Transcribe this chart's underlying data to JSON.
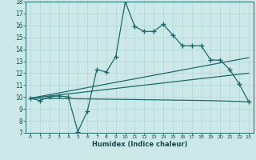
{
  "xlabel": "Humidex (Indice chaleur)",
  "bg_color": "#cde8e8",
  "line_color": "#1a6b6b",
  "grid_color": "#b0d8d8",
  "x_min": 0,
  "x_max": 23,
  "y_min": 7,
  "y_max": 18,
  "main_x": [
    0,
    1,
    2,
    3,
    4,
    5,
    6,
    7,
    8,
    9,
    10,
    11,
    12,
    13,
    14,
    15,
    16,
    17,
    18,
    19,
    20,
    21,
    22,
    23
  ],
  "main_y": [
    9.9,
    9.7,
    10.0,
    10.1,
    10.0,
    7.1,
    8.8,
    12.3,
    12.1,
    13.4,
    18.0,
    15.9,
    15.5,
    15.5,
    16.1,
    15.2,
    14.3,
    14.3,
    14.3,
    13.1,
    13.1,
    12.3,
    11.1,
    9.6
  ],
  "line1_x": [
    0,
    23
  ],
  "line1_y": [
    9.9,
    13.3
  ],
  "line2_x": [
    0,
    23
  ],
  "line2_y": [
    9.9,
    12.0
  ],
  "line3_x": [
    0,
    10,
    19,
    23
  ],
  "line3_y": [
    9.9,
    9.8,
    9.7,
    9.6
  ]
}
